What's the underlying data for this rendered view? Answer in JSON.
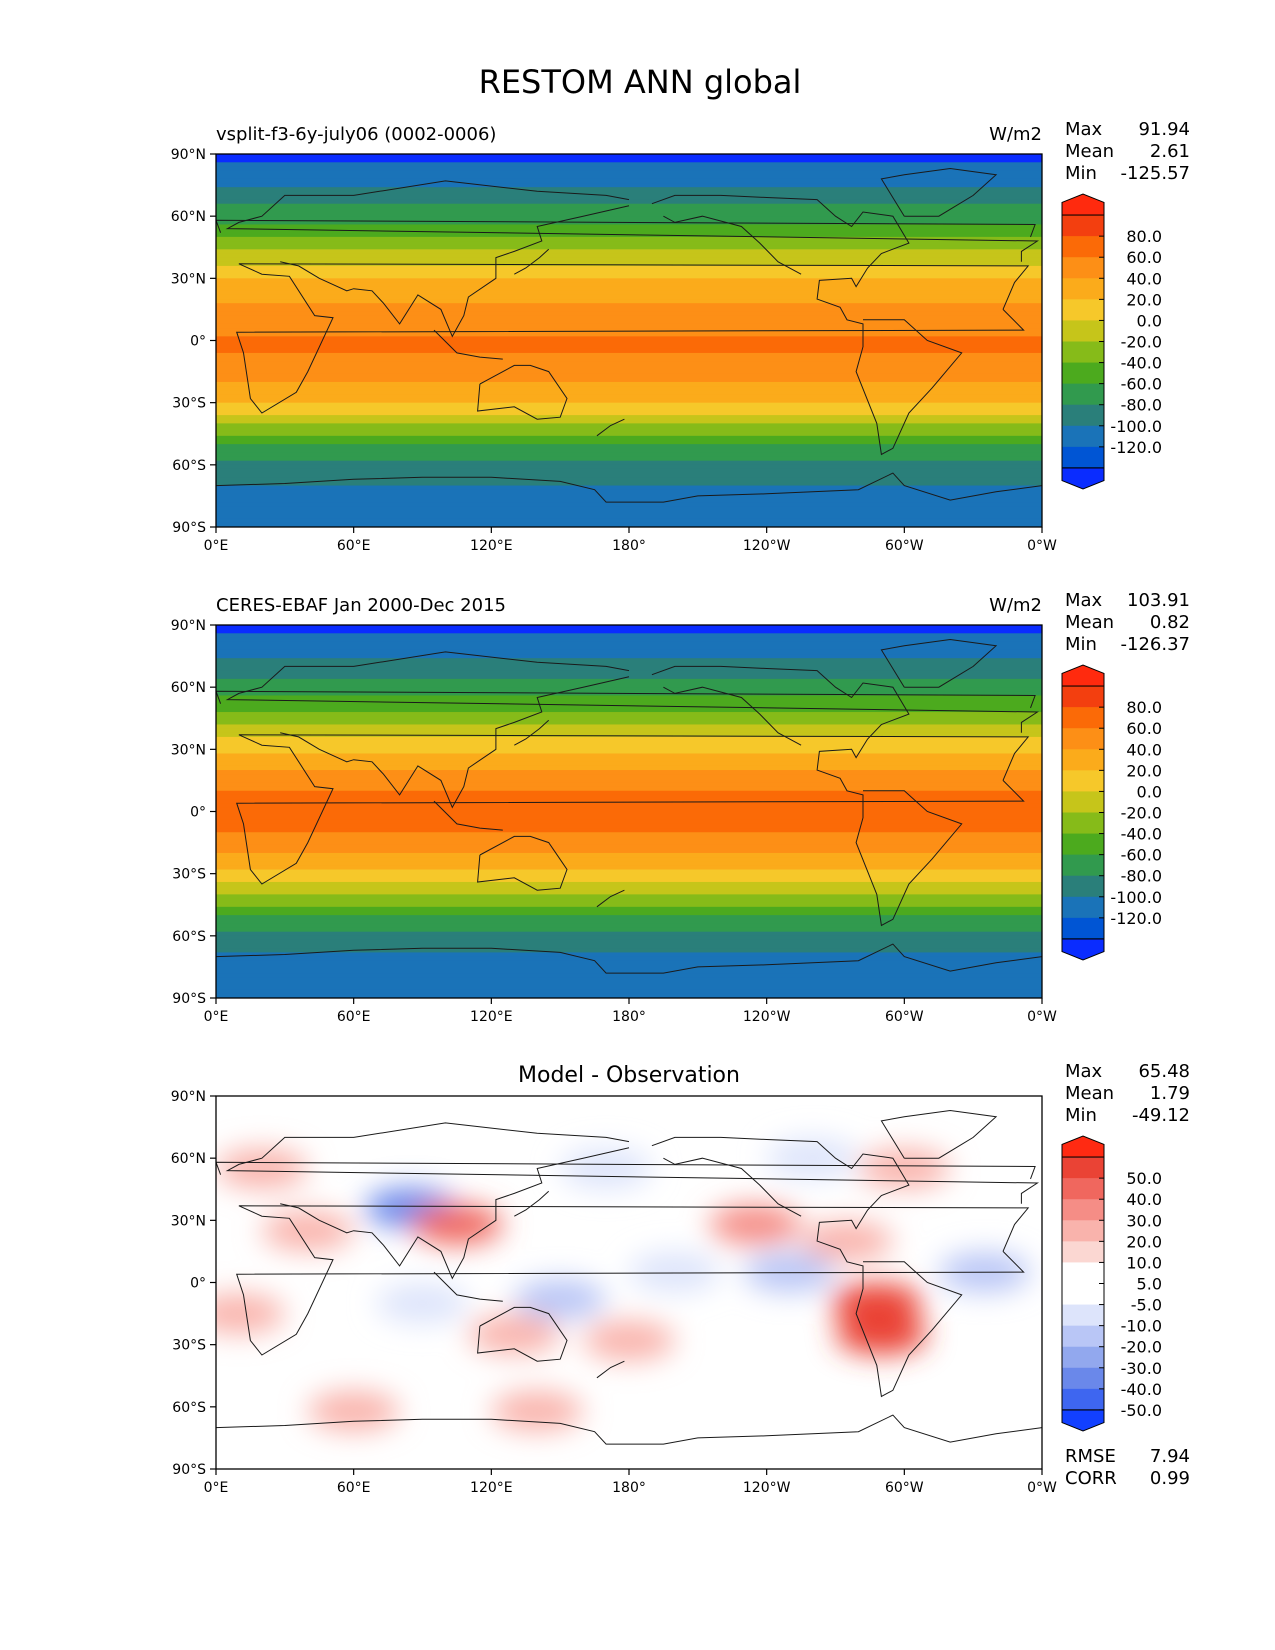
{
  "figure_title": "RESTOM ANN global",
  "colors": {
    "abs_levels": [
      "#0a2cff",
      "#0055d4",
      "#1a73b8",
      "#2a7f7a",
      "#319a4e",
      "#4caa1e",
      "#86bb19",
      "#c6c51a",
      "#f6c82a",
      "#fbab1b",
      "#fd8f16",
      "#fb6a07",
      "#f33f0f",
      "#ff2a0e"
    ],
    "diff_levels": [
      "#1240ff",
      "#3e66f0",
      "#6a88ea",
      "#92a8ee",
      "#b9c6f6",
      "#dde4fb",
      "#ffffff",
      "#ffffff",
      "#fbd7d2",
      "#f9b3ac",
      "#f58d86",
      "#f0675e",
      "#ea4335",
      "#ff2a12"
    ],
    "coastline": "#1a1a1a"
  },
  "chart_data": [
    {
      "type": "heatmap",
      "title": "vsplit-f3-6y-july06 (0002-0006)",
      "units": "W/m2",
      "stats": {
        "max": "91.94",
        "mean": "2.61",
        "min": "-125.57"
      },
      "x_ticks": [
        "0°E",
        "60°E",
        "120°E",
        "180°",
        "120°W",
        "60°W",
        "0°W"
      ],
      "y_ticks": [
        "90°N",
        "60°N",
        "30°N",
        "0°",
        "30°S",
        "60°S",
        "90°S"
      ],
      "xlim": [
        0,
        360
      ],
      "ylim": [
        -90,
        90
      ],
      "colorbar": {
        "levels": [
          "80.0",
          "60.0",
          "40.0",
          "20.0",
          "0.0",
          "-20.0",
          "-40.0",
          "-60.0",
          "-80.0",
          "-100.0",
          "-120.0"
        ],
        "extend": "both"
      },
      "zonal_profile": [
        {
          "lat": 90,
          "value": -125
        },
        {
          "lat": 80,
          "value": -110
        },
        {
          "lat": 70,
          "value": -92
        },
        {
          "lat": 60,
          "value": -68
        },
        {
          "lat": 50,
          "value": -42
        },
        {
          "lat": 40,
          "value": -10
        },
        {
          "lat": 30,
          "value": 18
        },
        {
          "lat": 20,
          "value": 38
        },
        {
          "lat": 10,
          "value": 55
        },
        {
          "lat": 0,
          "value": 62
        },
        {
          "lat": -10,
          "value": 58
        },
        {
          "lat": -20,
          "value": 42
        },
        {
          "lat": -30,
          "value": 18
        },
        {
          "lat": -40,
          "value": -18
        },
        {
          "lat": -50,
          "value": -58
        },
        {
          "lat": -60,
          "value": -85
        },
        {
          "lat": -70,
          "value": -100
        },
        {
          "lat": -80,
          "value": -112
        },
        {
          "lat": -90,
          "value": -118
        }
      ]
    },
    {
      "type": "heatmap",
      "title": "CERES-EBAF Jan 2000-Dec 2015",
      "units": "W/m2",
      "stats": {
        "max": "103.91",
        "mean": "0.82",
        "min": "-126.37"
      },
      "x_ticks": [
        "0°E",
        "60°E",
        "120°E",
        "180°",
        "120°W",
        "60°W",
        "0°W"
      ],
      "y_ticks": [
        "90°N",
        "60°N",
        "30°N",
        "0°",
        "30°S",
        "60°S",
        "90°S"
      ],
      "xlim": [
        0,
        360
      ],
      "ylim": [
        -90,
        90
      ],
      "colorbar": {
        "levels": [
          "80.0",
          "60.0",
          "40.0",
          "20.0",
          "0.0",
          "-20.0",
          "-40.0",
          "-60.0",
          "-80.0",
          "-100.0",
          "-120.0"
        ],
        "extend": "both"
      },
      "zonal_profile": [
        {
          "lat": 90,
          "value": -126
        },
        {
          "lat": 80,
          "value": -112
        },
        {
          "lat": 70,
          "value": -94
        },
        {
          "lat": 60,
          "value": -70
        },
        {
          "lat": 50,
          "value": -44
        },
        {
          "lat": 40,
          "value": -12
        },
        {
          "lat": 30,
          "value": 16
        },
        {
          "lat": 20,
          "value": 40
        },
        {
          "lat": 10,
          "value": 62
        },
        {
          "lat": 0,
          "value": 70
        },
        {
          "lat": -10,
          "value": 60
        },
        {
          "lat": -20,
          "value": 40
        },
        {
          "lat": -30,
          "value": 15
        },
        {
          "lat": -40,
          "value": -20
        },
        {
          "lat": -50,
          "value": -60
        },
        {
          "lat": -60,
          "value": -88
        },
        {
          "lat": -70,
          "value": -102
        },
        {
          "lat": -80,
          "value": -114
        },
        {
          "lat": -90,
          "value": -120
        }
      ]
    },
    {
      "type": "heatmap",
      "title": "Model - Observation",
      "units": "",
      "stats": {
        "max": "65.48",
        "mean": "1.79",
        "min": "-49.12"
      },
      "metrics": {
        "rmse": "7.94",
        "corr": "0.99"
      },
      "x_ticks": [
        "0°E",
        "60°E",
        "120°E",
        "180°",
        "120°W",
        "60°W",
        "0°W"
      ],
      "y_ticks": [
        "90°N",
        "60°N",
        "30°N",
        "0°",
        "30°S",
        "60°S",
        "90°S"
      ],
      "xlim": [
        0,
        360
      ],
      "ylim": [
        -90,
        90
      ],
      "colorbar": {
        "levels": [
          "50.0",
          "40.0",
          "30.0",
          "20.0",
          "10.0",
          "5.0",
          "-5.0",
          "-10.0",
          "-20.0",
          "-30.0",
          "-40.0",
          "-50.0"
        ],
        "extend": "both"
      },
      "anomalies": [
        {
          "lon": 20,
          "lat": 55,
          "value": 15
        },
        {
          "lon": 40,
          "lat": 25,
          "value": 14
        },
        {
          "lon": 85,
          "lat": 36,
          "value": -35
        },
        {
          "lon": 105,
          "lat": 28,
          "value": 32
        },
        {
          "lon": 150,
          "lat": -8,
          "value": -12
        },
        {
          "lon": 90,
          "lat": -10,
          "value": -10
        },
        {
          "lon": 10,
          "lat": -15,
          "value": 18
        },
        {
          "lon": 130,
          "lat": -25,
          "value": 12
        },
        {
          "lon": 235,
          "lat": 28,
          "value": 28
        },
        {
          "lon": 288,
          "lat": -10,
          "value": 40
        },
        {
          "lon": 290,
          "lat": -25,
          "value": 45
        },
        {
          "lon": 275,
          "lat": 20,
          "value": 18
        },
        {
          "lon": 250,
          "lat": 5,
          "value": -12
        },
        {
          "lon": 335,
          "lat": 5,
          "value": -14
        },
        {
          "lon": 200,
          "lat": 5,
          "value": -10
        },
        {
          "lon": 60,
          "lat": -62,
          "value": 15
        },
        {
          "lon": 140,
          "lat": -62,
          "value": 12
        },
        {
          "lon": 180,
          "lat": -28,
          "value": 10
        },
        {
          "lon": 300,
          "lat": 55,
          "value": 14
        },
        {
          "lon": 260,
          "lat": 60,
          "value": -10
        },
        {
          "lon": 170,
          "lat": 55,
          "value": -8
        }
      ]
    }
  ],
  "labels": {
    "max": "Max",
    "mean": "Mean",
    "min": "Min",
    "rmse": "RMSE",
    "corr": "CORR"
  }
}
